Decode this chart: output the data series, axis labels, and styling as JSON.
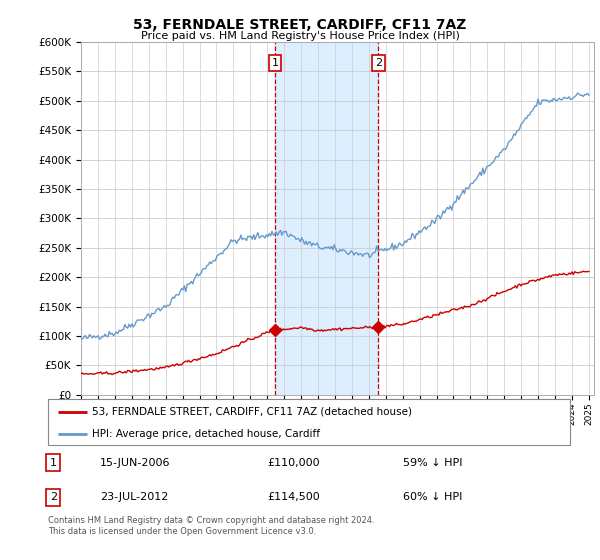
{
  "title": "53, FERNDALE STREET, CARDIFF, CF11 7AZ",
  "subtitle": "Price paid vs. HM Land Registry's House Price Index (HPI)",
  "x_start_year": 1995,
  "x_end_year": 2025,
  "ylim": [
    0,
    600000
  ],
  "yticks": [
    0,
    50000,
    100000,
    150000,
    200000,
    250000,
    300000,
    350000,
    400000,
    450000,
    500000,
    550000,
    600000
  ],
  "legend_label_red": "53, FERNDALE STREET, CARDIFF, CF11 7AZ (detached house)",
  "legend_label_blue": "HPI: Average price, detached house, Cardiff",
  "transaction1_date": "15-JUN-2006",
  "transaction1_price": "£110,000",
  "transaction1_hpi": "59% ↓ HPI",
  "transaction2_date": "23-JUL-2012",
  "transaction2_price": "£114,500",
  "transaction2_hpi": "60% ↓ HPI",
  "footer": "Contains HM Land Registry data © Crown copyright and database right 2024.\nThis data is licensed under the Open Government Licence v3.0.",
  "transaction1_year": 2006.46,
  "transaction2_year": 2012.56,
  "red_color": "#cc0000",
  "blue_color": "#6699cc",
  "highlight_color": "#ddeeff",
  "vline_color": "#cc0000",
  "marker_color": "#cc0000",
  "background_color": "#ffffff"
}
